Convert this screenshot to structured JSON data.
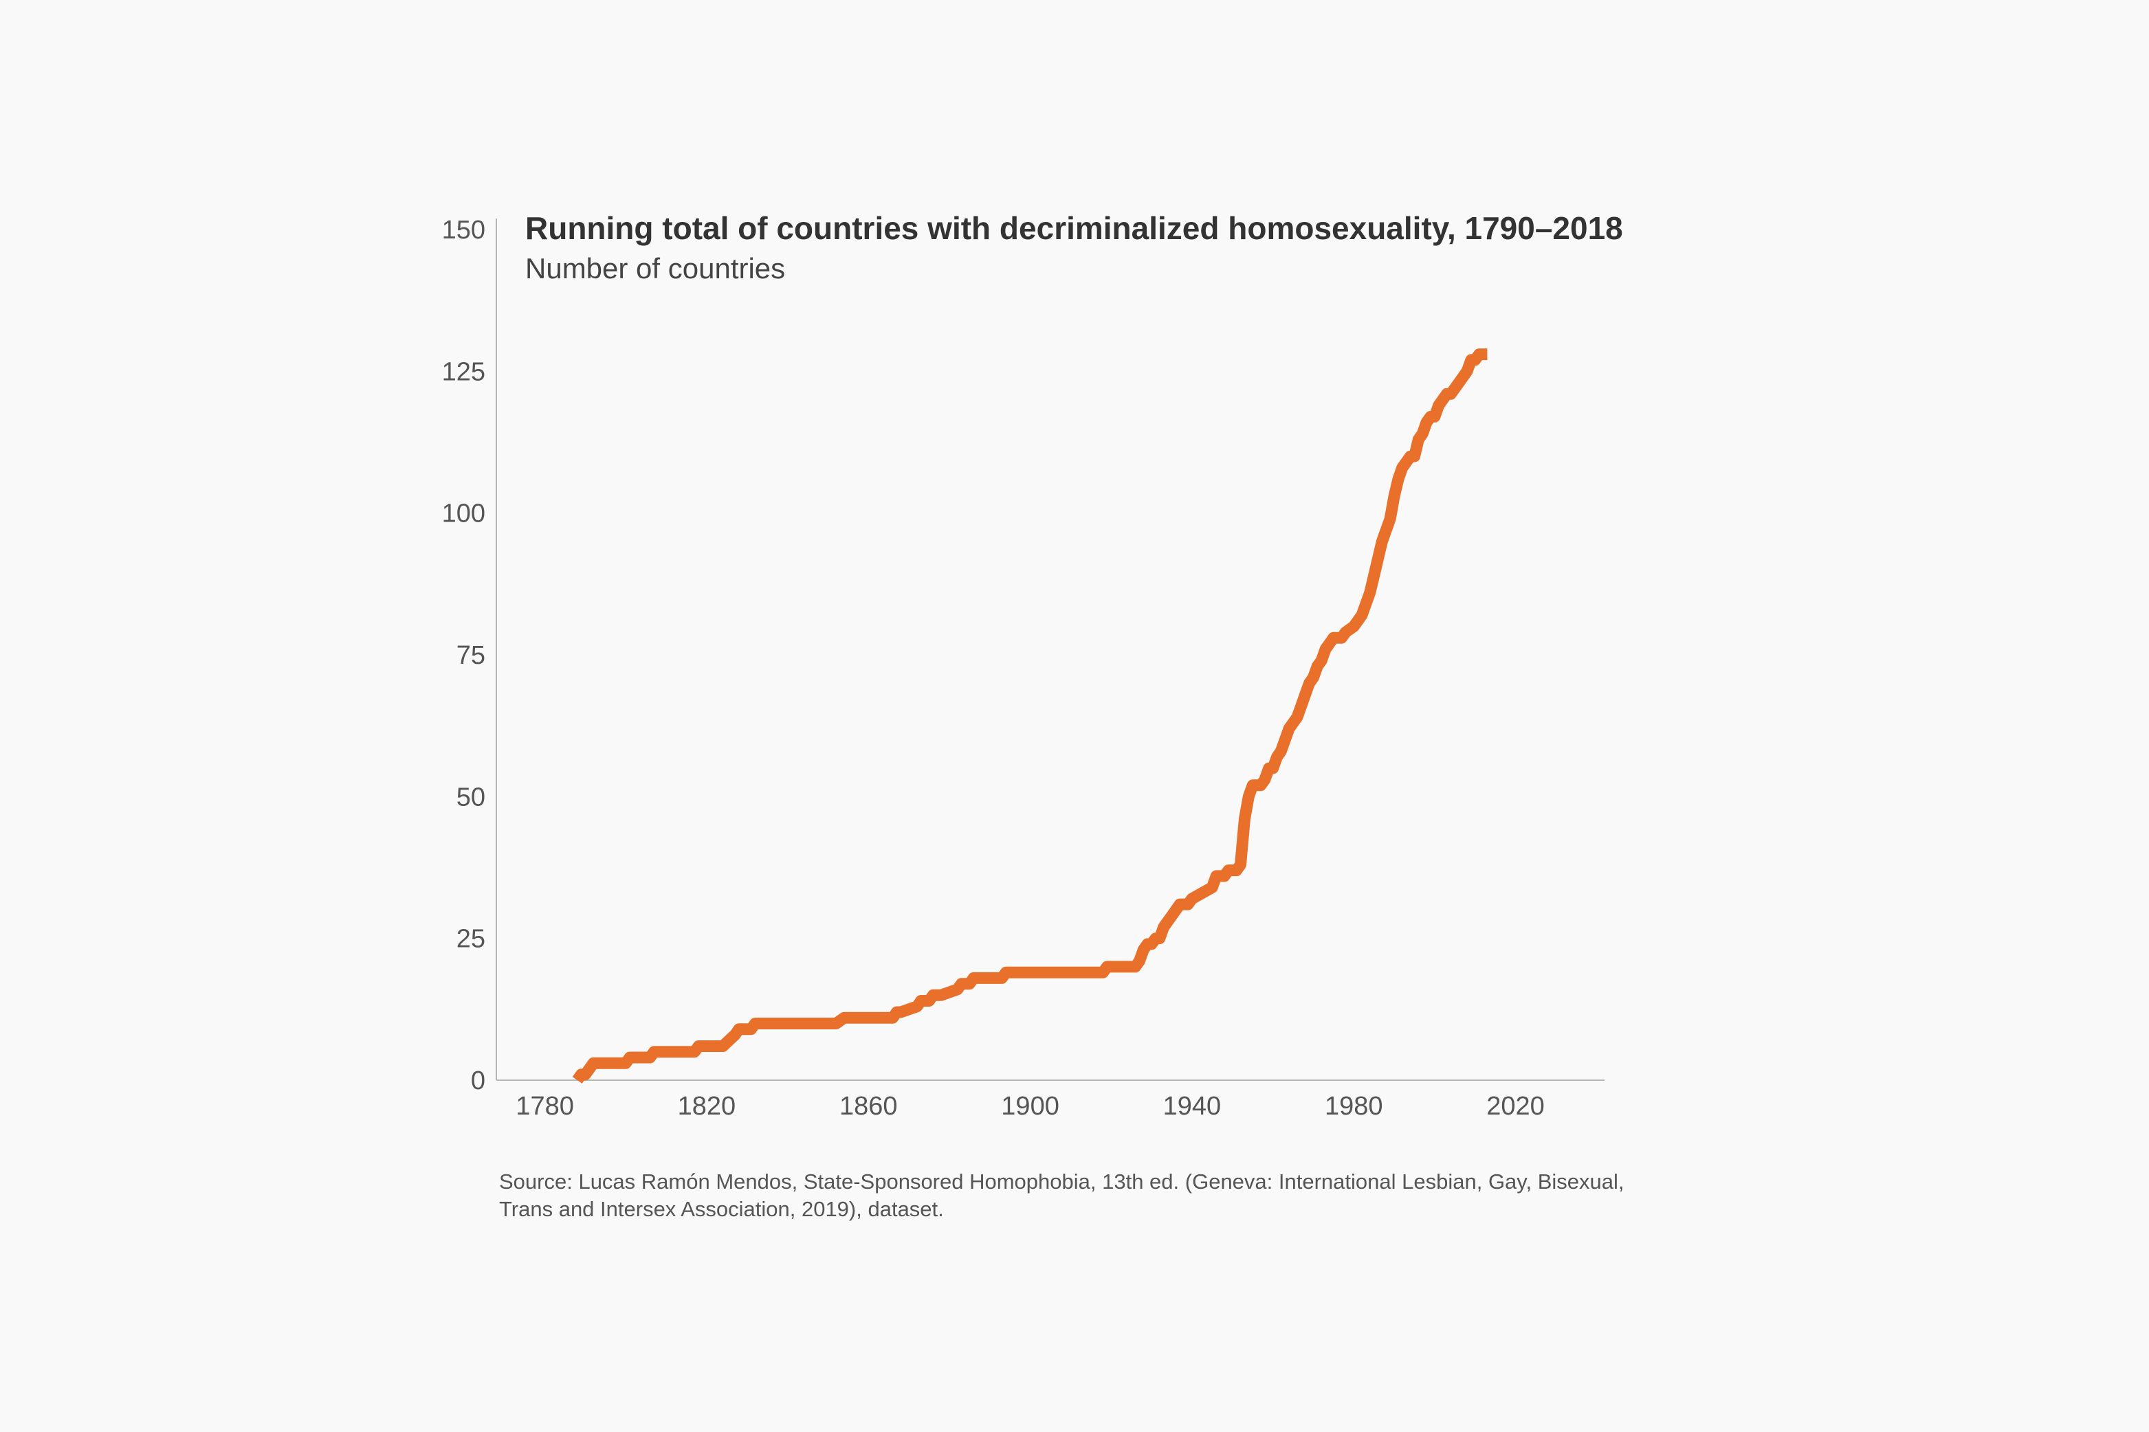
{
  "chart_data": {
    "type": "line",
    "title": "Running total of countries with decriminalized homosexuality, 1790–2018",
    "subtitle": "Number of countries",
    "xlabel": "",
    "ylabel": "",
    "xlim": [
      1768,
      2042
    ],
    "ylim": [
      0,
      150
    ],
    "x_ticks": [
      1780,
      1820,
      1860,
      1900,
      1940,
      1980,
      2020
    ],
    "y_ticks": [
      0,
      25,
      50,
      75,
      100,
      125,
      150
    ],
    "grid": false,
    "line_color": "#e8702a",
    "series": [
      {
        "x": [
          1788,
          1789,
          1790,
          1791,
          1792,
          1793,
          1800,
          1801,
          1806,
          1807,
          1817,
          1818,
          1824,
          1827,
          1828,
          1831,
          1832,
          1852,
          1854,
          1855,
          1866,
          1867,
          1868,
          1872,
          1873,
          1875,
          1876,
          1878,
          1882,
          1883,
          1885,
          1886,
          1893,
          1894,
          1918,
          1919,
          1925,
          1926,
          1927,
          1928,
          1929,
          1930,
          1931,
          1932,
          1933,
          1934,
          1935,
          1936,
          1937,
          1938,
          1939,
          1940,
          1945,
          1946,
          1947,
          1948,
          1949,
          1950,
          1951,
          1952,
          1953,
          1954,
          1955,
          1956,
          1957,
          1958,
          1959,
          1960,
          1961,
          1962,
          1963,
          1964,
          1965,
          1966,
          1967,
          1968,
          1969,
          1970,
          1971,
          1972,
          1973,
          1974,
          1975,
          1976,
          1977,
          1978,
          1980,
          1981,
          1982,
          1983,
          1984,
          1985,
          1986,
          1987,
          1988,
          1989,
          1990,
          1991,
          1992,
          1993,
          1994,
          1995,
          1996,
          1997,
          1998,
          1999,
          2000,
          2001,
          2002,
          2003,
          2004,
          2005,
          2006,
          2007,
          2008,
          2009,
          2010,
          2011,
          2012,
          2013
        ],
        "y": [
          0,
          1,
          1,
          2,
          3,
          3,
          3,
          4,
          4,
          5,
          5,
          6,
          6,
          8,
          9,
          9,
          10,
          10,
          11,
          11,
          11,
          12,
          12,
          13,
          14,
          14,
          15,
          15,
          16,
          17,
          17,
          18,
          18,
          19,
          19,
          20,
          20,
          20,
          21,
          23,
          24,
          24,
          25,
          25,
          27,
          28,
          29,
          30,
          31,
          31,
          31,
          32,
          34,
          36,
          36,
          36,
          37,
          37,
          37,
          38,
          46,
          50,
          52,
          52,
          52,
          53,
          55,
          55,
          57,
          58,
          60,
          62,
          63,
          64,
          66,
          68,
          70,
          71,
          73,
          74,
          76,
          77,
          78,
          78,
          78,
          79,
          80,
          81,
          82,
          84,
          86,
          89,
          92,
          95,
          97,
          99,
          103,
          106,
          108,
          109,
          110,
          110,
          113,
          114,
          116,
          117,
          117,
          119,
          120,
          121,
          121,
          122,
          123,
          124,
          125,
          127,
          127,
          128,
          128,
          128
        ]
      }
    ],
    "source": "Source: Lucas Ramón Mendos, State-Sponsored Homophobia, 13th ed. (Geneva: International Lesbian, Gay, Bisexual, Trans and Intersex Association, 2019), dataset."
  }
}
